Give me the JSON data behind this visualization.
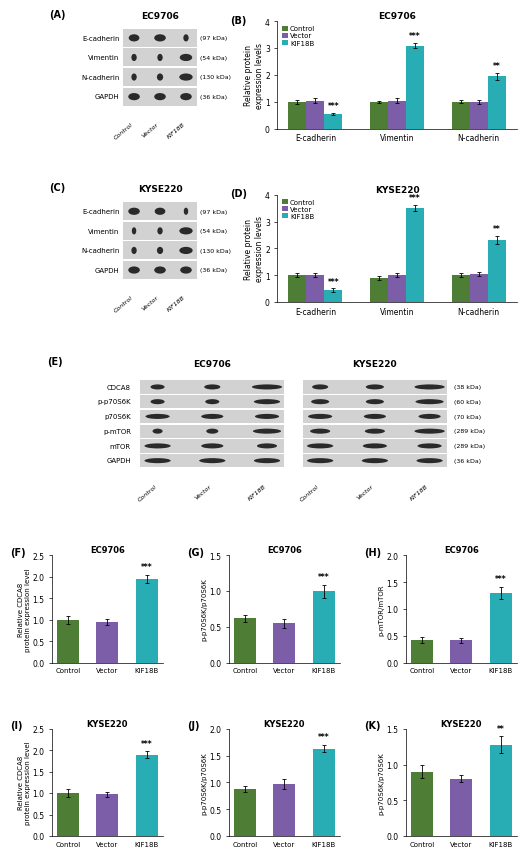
{
  "colors": {
    "control": "#4e7d35",
    "vector": "#7b5ea7",
    "kif18b": "#29adb5",
    "background": "#ffffff",
    "blot_bg": "#c8c8c8",
    "blot_band": "#333333",
    "blot_box_bg": "#d8d8d8"
  },
  "panel_B": {
    "title": "EC9706",
    "groups": [
      "E-cadherin",
      "Vimentin",
      "N-cadherin"
    ],
    "control": [
      1.0,
      1.0,
      1.0
    ],
    "vector": [
      1.05,
      1.05,
      1.0
    ],
    "kif18b": [
      0.55,
      3.1,
      1.95
    ],
    "control_err": [
      0.07,
      0.05,
      0.06
    ],
    "vector_err": [
      0.1,
      0.08,
      0.08
    ],
    "kif18b_err": [
      0.05,
      0.1,
      0.12
    ],
    "sig_kif18b": [
      "***",
      "***",
      "**"
    ],
    "ylim": [
      0,
      4
    ],
    "yticks": [
      0,
      1,
      2,
      3,
      4
    ],
    "ylabel": "Relative protein\nexpression levels"
  },
  "panel_D": {
    "title": "KYSE220",
    "groups": [
      "E-cadherin",
      "Vimentin",
      "N-cadherin"
    ],
    "control": [
      1.0,
      0.9,
      1.0
    ],
    "vector": [
      1.0,
      1.0,
      1.05
    ],
    "kif18b": [
      0.45,
      3.5,
      2.3
    ],
    "control_err": [
      0.07,
      0.06,
      0.07
    ],
    "vector_err": [
      0.08,
      0.07,
      0.09
    ],
    "kif18b_err": [
      0.06,
      0.12,
      0.15
    ],
    "sig_kif18b": [
      "***",
      "***",
      "**"
    ],
    "ylim": [
      0,
      4
    ],
    "yticks": [
      0,
      1,
      2,
      3,
      4
    ],
    "ylabel": "Relative protein\nexpression levels"
  },
  "panel_F": {
    "title": "EC9706",
    "ylabel": "Relative CDCA8\nprotein expression level",
    "control": 1.0,
    "vector": 0.95,
    "kif18b": 1.95,
    "control_err": 0.1,
    "vector_err": 0.07,
    "kif18b_err": 0.1,
    "sig_kif18b": "***",
    "ylim": [
      0,
      2.5
    ],
    "yticks": [
      0.0,
      0.5,
      1.0,
      1.5,
      2.0,
      2.5
    ]
  },
  "panel_G": {
    "title": "EC9706",
    "ylabel": "p-p70S6K/p70S6K",
    "control": 0.62,
    "vector": 0.55,
    "kif18b": 1.0,
    "control_err": 0.05,
    "vector_err": 0.06,
    "kif18b_err": 0.09,
    "sig_kif18b": "***",
    "ylim": [
      0,
      1.5
    ],
    "yticks": [
      0.0,
      0.5,
      1.0,
      1.5
    ]
  },
  "panel_H": {
    "title": "EC9706",
    "ylabel": "p-mTOR/mTOR",
    "control": 0.42,
    "vector": 0.42,
    "kif18b": 1.3,
    "control_err": 0.06,
    "vector_err": 0.05,
    "kif18b_err": 0.12,
    "sig_kif18b": "***",
    "ylim": [
      0,
      2.0
    ],
    "yticks": [
      0.0,
      0.5,
      1.0,
      1.5,
      2.0
    ]
  },
  "panel_I": {
    "title": "KYSE220",
    "ylabel": "Relative CDCA8\nprotein expression level",
    "control": 1.0,
    "vector": 0.97,
    "kif18b": 1.9,
    "control_err": 0.1,
    "vector_err": 0.06,
    "kif18b_err": 0.08,
    "sig_kif18b": "***",
    "ylim": [
      0,
      2.5
    ],
    "yticks": [
      0.0,
      0.5,
      1.0,
      1.5,
      2.0,
      2.5
    ]
  },
  "panel_J": {
    "title": "KYSE220",
    "ylabel": "p-p70S6K/p70S6K",
    "control": 0.88,
    "vector": 0.97,
    "kif18b": 1.63,
    "control_err": 0.06,
    "vector_err": 0.09,
    "kif18b_err": 0.07,
    "sig_kif18b": "***",
    "ylim": [
      0,
      2.0
    ],
    "yticks": [
      0.0,
      0.5,
      1.0,
      1.5,
      2.0
    ]
  },
  "panel_K": {
    "title": "KYSE220",
    "ylabel": "p-p70S6K/p70S6K",
    "control": 0.9,
    "vector": 0.8,
    "kif18b": 1.28,
    "control_err": 0.09,
    "vector_err": 0.05,
    "kif18b_err": 0.12,
    "sig_kif18b": "**",
    "ylim": [
      0,
      1.5
    ],
    "yticks": [
      0.0,
      0.5,
      1.0,
      1.5
    ]
  }
}
